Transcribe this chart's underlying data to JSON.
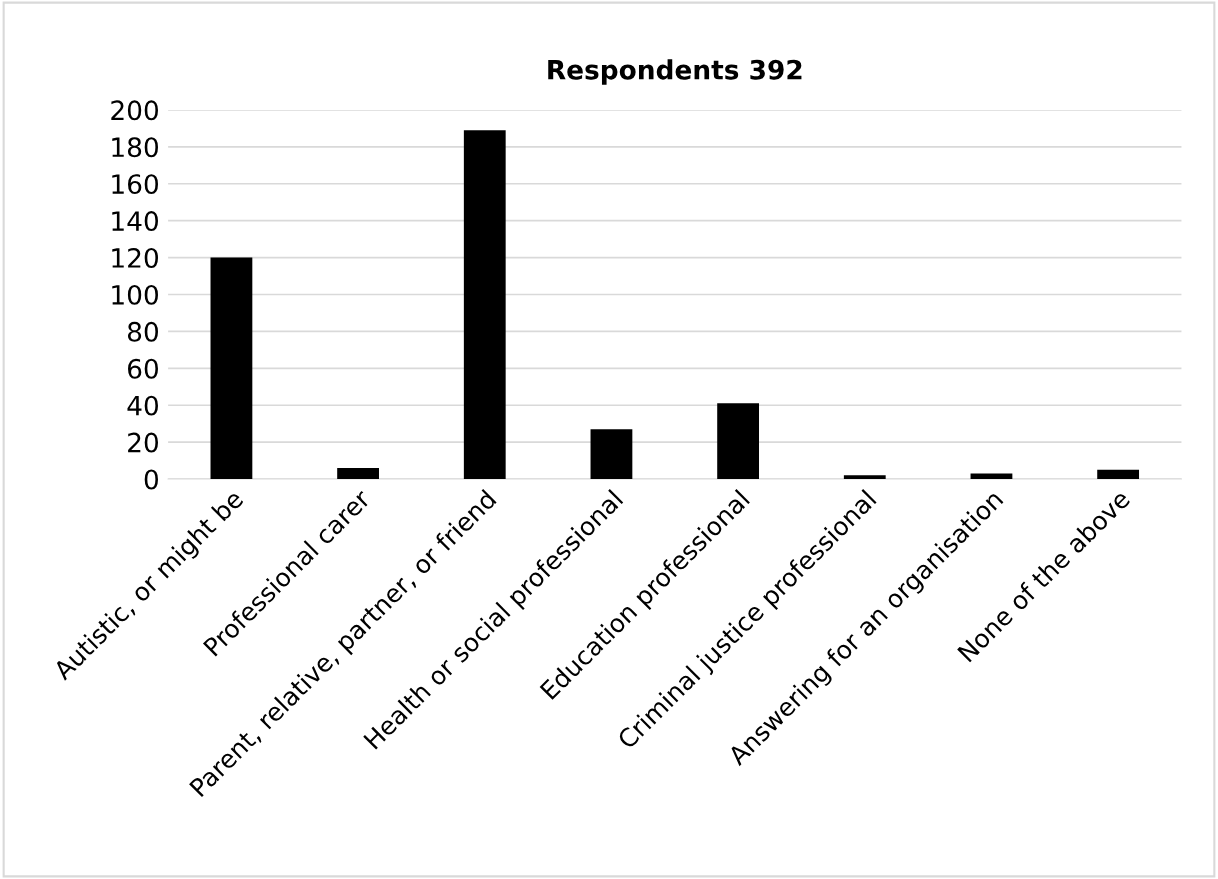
{
  "chart_data": {
    "type": "bar",
    "title": "Respondents 392",
    "categories": [
      "Autistic, or might be",
      "Professional carer",
      "Parent, relative, partner, or friend",
      "Health or social professional",
      "Education professional",
      "Criminal justice professional",
      "Answering for an organisation",
      "None of the above"
    ],
    "values": [
      120,
      6,
      189,
      27,
      41,
      2,
      3,
      5
    ],
    "color": "#000000",
    "ylim": [
      0,
      200
    ],
    "yticks": [
      0,
      20,
      40,
      60,
      80,
      100,
      120,
      140,
      160,
      180,
      200
    ],
    "grid": "y"
  }
}
